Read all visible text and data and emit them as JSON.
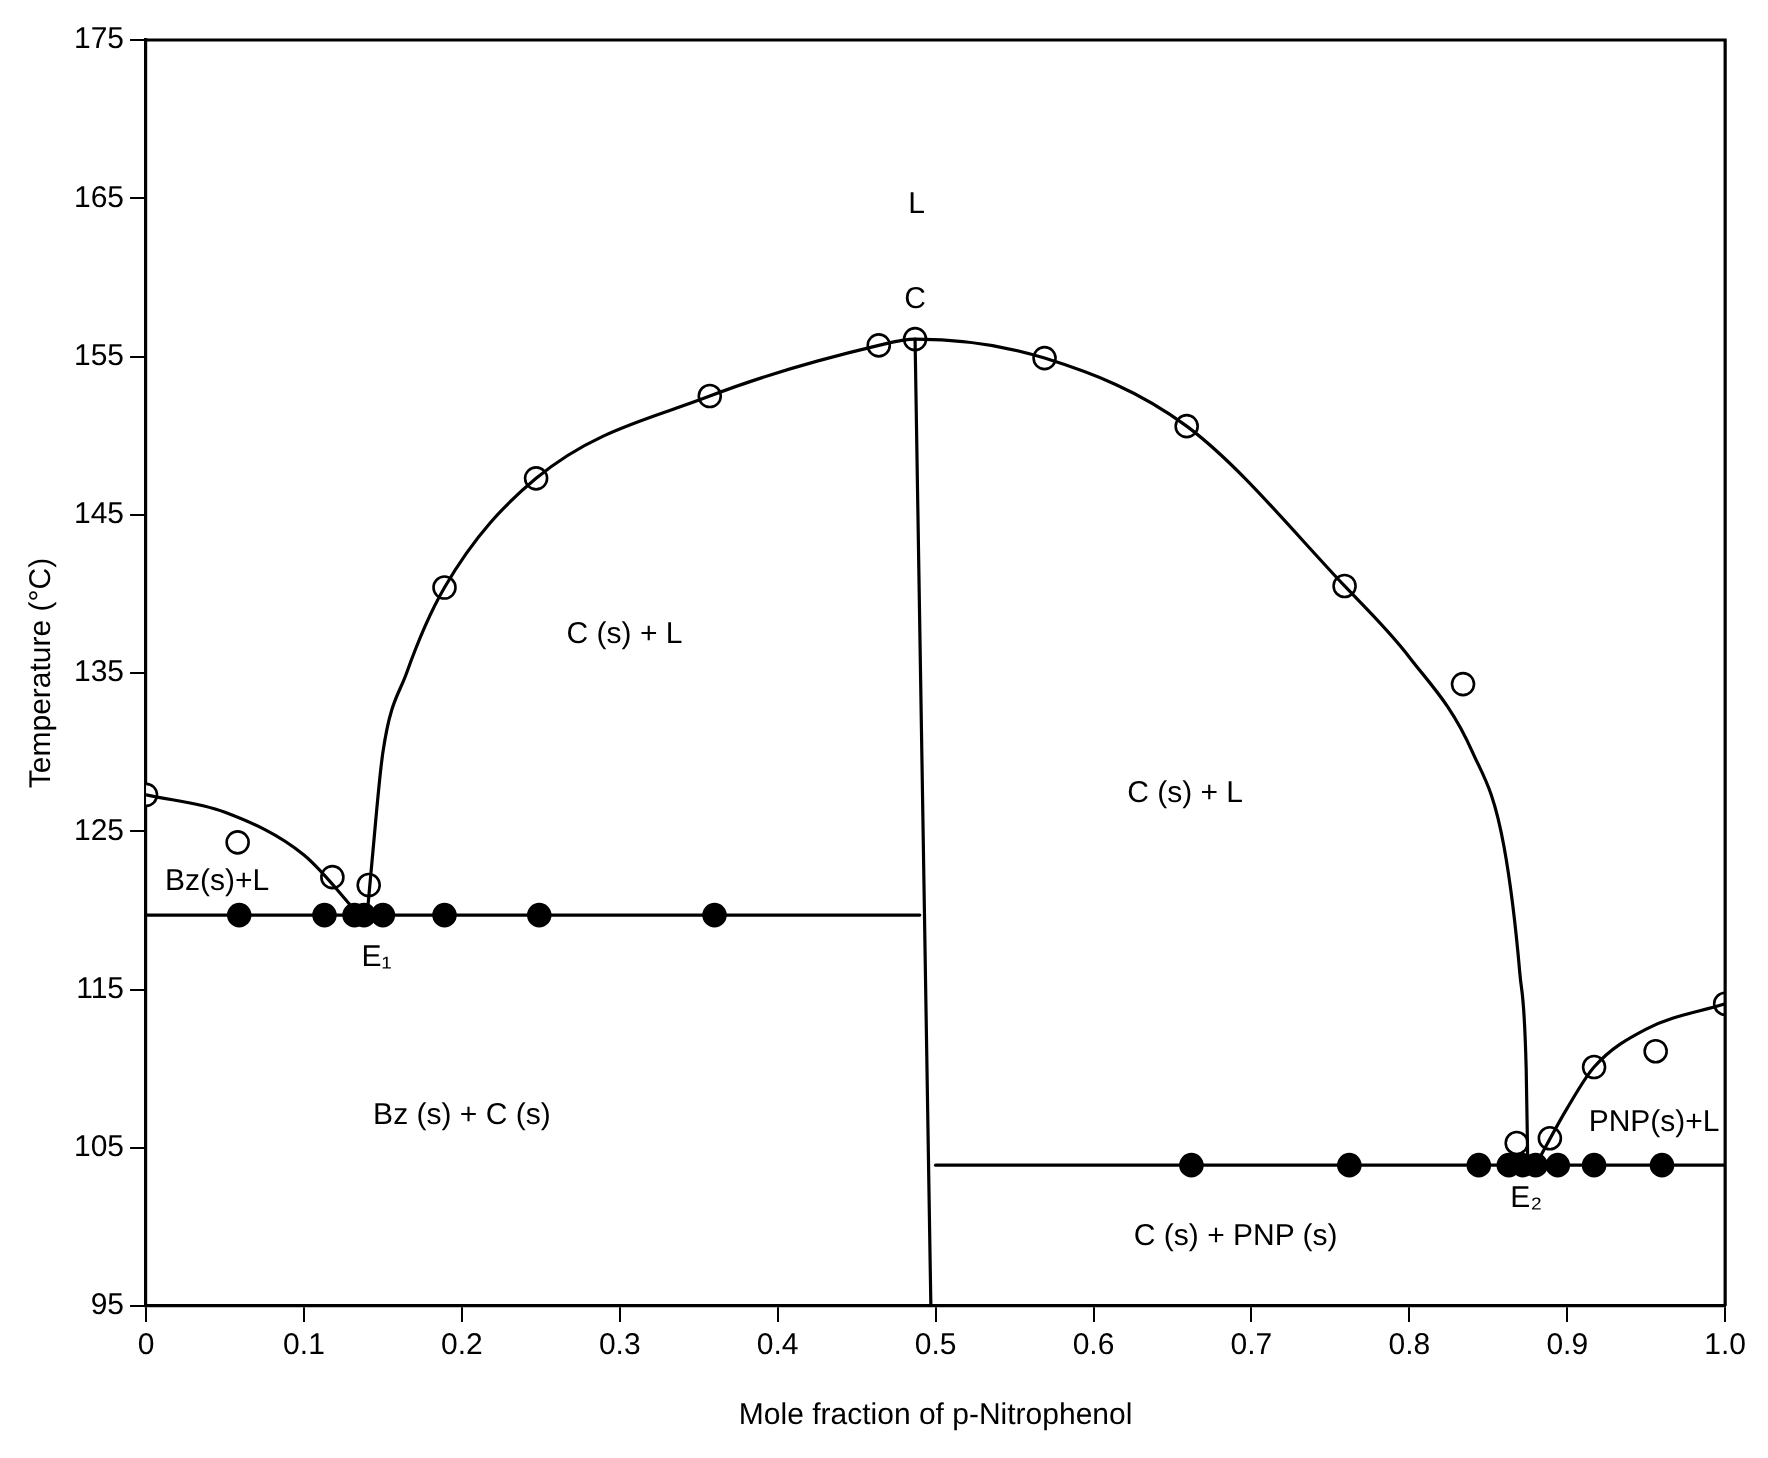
{
  "chart_data": {
    "type": "scatter",
    "xlabel": "Mole fraction of p-Nitrophenol",
    "ylabel": "Temperature (°C)",
    "xlim": [
      0,
      1
    ],
    "ylim": [
      95,
      175
    ],
    "xticks": [
      0,
      0.1,
      0.2,
      0.3,
      0.4,
      0.5,
      0.6,
      0.7,
      0.8,
      0.9,
      {
        "value": 1,
        "label": "1.0"
      }
    ],
    "yticks": [
      95,
      105,
      115,
      125,
      135,
      145,
      155,
      165,
      175
    ],
    "grid": false,
    "legend": false,
    "series": [
      {
        "type": "line",
        "marker": "none",
        "color": "#000000",
        "x": [
          0,
          0.05,
          0.1,
          0.135
        ],
        "values": [
          127.3,
          126.2,
          123.5,
          119.7
        ]
      },
      {
        "type": "line",
        "marker": "none",
        "color": "#000000",
        "x": [
          0.14,
          0.143,
          0.15,
          0.165,
          0.189,
          0.247,
          0.357,
          0.464,
          0.487,
          0.569,
          0.659,
          0.759,
          0.8,
          0.84,
          0.86,
          0.87,
          0.874,
          0.875
        ],
        "values": [
          119.7,
          123,
          130,
          135,
          140.4,
          147.3,
          152.5,
          155.7,
          156.1,
          154.9,
          150.6,
          140.5,
          136,
          130,
          124,
          116,
          110,
          103.9
        ]
      },
      {
        "type": "line",
        "marker": "none",
        "color": "#000000",
        "x": [
          0.88,
          0.9,
          0.917,
          0.95,
          1.0
        ],
        "values": [
          103.9,
          107.5,
          110.1,
          112.5,
          114.1
        ]
      },
      {
        "type": "line",
        "marker": "none",
        "color": "#000000",
        "x": [
          0,
          0.49
        ],
        "values": [
          119.7,
          119.7
        ]
      },
      {
        "type": "line",
        "marker": "none",
        "color": "#000000",
        "x": [
          0.487,
          0.497
        ],
        "values": [
          156.1,
          95
        ]
      },
      {
        "type": "line",
        "marker": "none",
        "color": "#000000",
        "x": [
          0.5,
          1.0
        ],
        "values": [
          103.9,
          103.9
        ]
      },
      {
        "type": "scatter",
        "marker": "circle",
        "color": "#ffffff",
        "x": [
          0,
          0.058,
          0.118,
          0.141,
          0.189,
          0.247,
          0.357,
          0.464,
          0.487,
          0.569,
          0.659,
          0.759,
          0.834,
          0.868,
          0.889,
          0.917,
          0.956,
          1.0
        ],
        "values": [
          127.3,
          124.3,
          122.1,
          121.6,
          140.4,
          147.3,
          152.5,
          155.7,
          156.1,
          154.9,
          150.6,
          140.5,
          134.3,
          105.3,
          105.6,
          110.1,
          111.1,
          114.1
        ]
      },
      {
        "type": "scatter",
        "marker": "circle",
        "color": "#000000",
        "x": [
          0.059,
          0.113,
          0.132,
          0.138,
          0.15,
          0.189,
          0.249,
          0.36
        ],
        "values": [
          119.7,
          119.7,
          119.7,
          119.7,
          119.7,
          119.7,
          119.7,
          119.7
        ]
      },
      {
        "type": "scatter",
        "marker": "circle",
        "color": "#000000",
        "x": [
          0.662,
          0.762,
          0.844,
          0.863,
          0.872,
          0.88,
          0.894,
          0.917,
          0.96
        ],
        "values": [
          103.9,
          103.9,
          103.9,
          103.9,
          103.9,
          103.9,
          103.9,
          103.9,
          103.9
        ]
      }
    ],
    "annotations": [
      "L",
      "C",
      "C (s) + L",
      "C (s) + L",
      "Bz(s)+L",
      "E₁",
      "Bz (s) + C (s)",
      "C (s) + PNP (s)",
      "E₂",
      "PNP(s)+L"
    ]
  }
}
